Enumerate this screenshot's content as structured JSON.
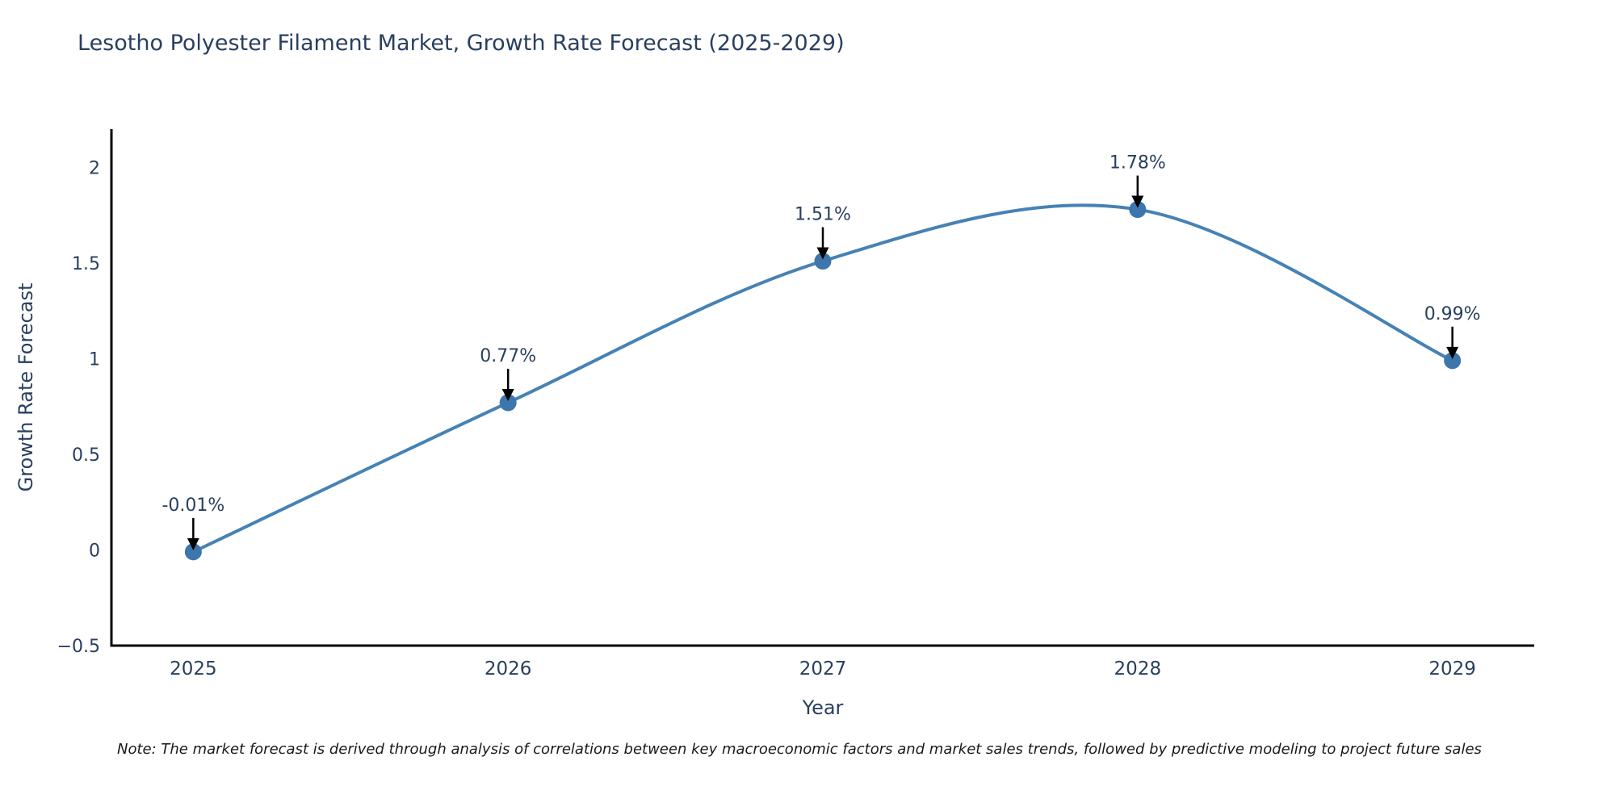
{
  "title": "Lesotho Polyester Filament Market, Growth Rate Forecast (2025-2029)",
  "chart_data": {
    "type": "line",
    "title": "Lesotho Polyester Filament Market, Growth Rate Forecast (2025-2029)",
    "categories": [
      "2025",
      "2026",
      "2027",
      "2028",
      "2029"
    ],
    "values": [
      -0.01,
      0.77,
      1.51,
      1.78,
      0.99
    ],
    "point_labels": [
      "-0.01%",
      "0.77%",
      "1.51%",
      "1.78%",
      "0.99%"
    ],
    "xlabel": "Year",
    "ylabel": "Growth Rate Forecast",
    "yticks": [
      -0.5,
      0,
      0.5,
      1,
      1.5,
      2
    ],
    "ytick_labels": [
      "−0.5",
      "0",
      "0.5",
      "1",
      "1.5",
      "2"
    ],
    "xlim": [
      2024.74,
      2029.26
    ],
    "ylim": [
      -0.5,
      2.2
    ],
    "grid": false,
    "legend_position": "none",
    "curve": "spline",
    "line_color": "#4682b4",
    "marker_color": "#3c76ad",
    "axis_color": "#000000",
    "text_color": "#2a3f5f",
    "arrow_color": "#000000"
  },
  "note": {
    "text": "Note: The market forecast is derived through analysis of correlations between key macroeconomic factors and market sales trends, followed by predictive modeling to project future sales"
  }
}
